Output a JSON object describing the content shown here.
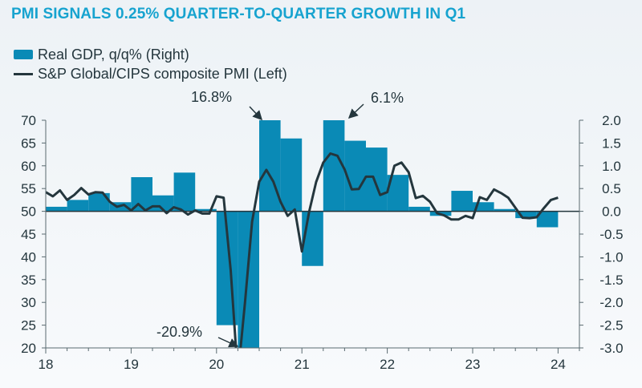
{
  "title": "PMI SIGNALS 0.25% QUARTER-TO-QUARTER GROWTH IN Q1",
  "legend": [
    {
      "label": "Real GDP, q/q% (Right)",
      "type": "bar",
      "color": "#0a8ab6"
    },
    {
      "label": "S&P Global/CIPS composite PMI (Left)",
      "type": "line",
      "color": "#24363d"
    }
  ],
  "chart_data": {
    "type": "bar+line",
    "title": "PMI SIGNALS 0.25% QUARTER-TO-QUARTER GROWTH IN Q1",
    "x_tick_labels": [
      "18",
      "19",
      "20",
      "21",
      "22",
      "23",
      "24"
    ],
    "x_range": [
      2018.0,
      2024.25
    ],
    "left_axis": {
      "label": "S&P Global/CIPS composite PMI",
      "ylim": [
        20,
        70
      ],
      "ticks": [
        "70",
        "65",
        "60",
        "55",
        "50",
        "45",
        "40",
        "35",
        "30",
        "25",
        "20"
      ]
    },
    "right_axis": {
      "label": "Real GDP, q/q%",
      "ylim": [
        -3.0,
        2.0
      ],
      "ticks": [
        "2.0",
        "1.5",
        "1.0",
        "0.5",
        "0.0",
        "-0.5",
        "-1.0",
        "-1.5",
        "-2.0",
        "-2.5",
        "-3.0"
      ]
    },
    "reference_line": {
      "axis": "right",
      "value": 0.0
    },
    "gdp_series": {
      "name": "Real GDP, q/q% (Right)",
      "quarters": [
        "2018Q1",
        "2018Q2",
        "2018Q3",
        "2018Q4",
        "2019Q1",
        "2019Q2",
        "2019Q3",
        "2019Q4",
        "2020Q1",
        "2020Q2",
        "2020Q3",
        "2020Q4",
        "2021Q1",
        "2021Q2",
        "2021Q3",
        "2021Q4",
        "2022Q1",
        "2022Q2",
        "2022Q3",
        "2022Q4",
        "2023Q1",
        "2023Q2",
        "2023Q3",
        "2023Q4"
      ],
      "values": [
        0.1,
        0.25,
        0.4,
        0.2,
        0.75,
        0.35,
        0.85,
        0.05,
        -2.5,
        -20.9,
        16.8,
        1.6,
        -1.2,
        6.1,
        1.55,
        1.4,
        0.8,
        0.1,
        -0.1,
        0.45,
        0.2,
        0.05,
        -0.15,
        -0.35
      ]
    },
    "pmi_series": {
      "name": "S&P Global/CIPS composite PMI (Left)",
      "start": "2018-01",
      "frequency": "monthly",
      "values": [
        54.2,
        53.3,
        54.6,
        52.5,
        53.6,
        55.1,
        53.7,
        54.2,
        54.1,
        52.1,
        51.0,
        51.4,
        50.2,
        51.6,
        50.2,
        51.1,
        51.1,
        49.6,
        50.9,
        50.4,
        49.3,
        50.2,
        49.5,
        49.5,
        53.3,
        53.0,
        37.0,
        13.8,
        30.0,
        47.7,
        56.5,
        59.1,
        56.5,
        52.1,
        49.0,
        50.4,
        41.2,
        49.8,
        56.4,
        60.7,
        62.7,
        62.2,
        59.2,
        54.8,
        54.9,
        57.6,
        57.6,
        53.6,
        54.2,
        60.0,
        60.7,
        58.6,
        52.9,
        53.4,
        52.1,
        49.6,
        49.1,
        48.2,
        48.2,
        49.0,
        48.5,
        53.1,
        52.5,
        54.8,
        54.0,
        53.0,
        50.8,
        48.6,
        48.5,
        48.7,
        50.7,
        52.5,
        53.0
      ]
    },
    "annotations": [
      {
        "text": "16.8%",
        "target": "2020Q3"
      },
      {
        "text": "6.1%",
        "target": "2021Q2"
      },
      {
        "text": "-20.9%",
        "target": "2020Q2"
      }
    ],
    "grid": false,
    "legend_position": "top-left"
  }
}
